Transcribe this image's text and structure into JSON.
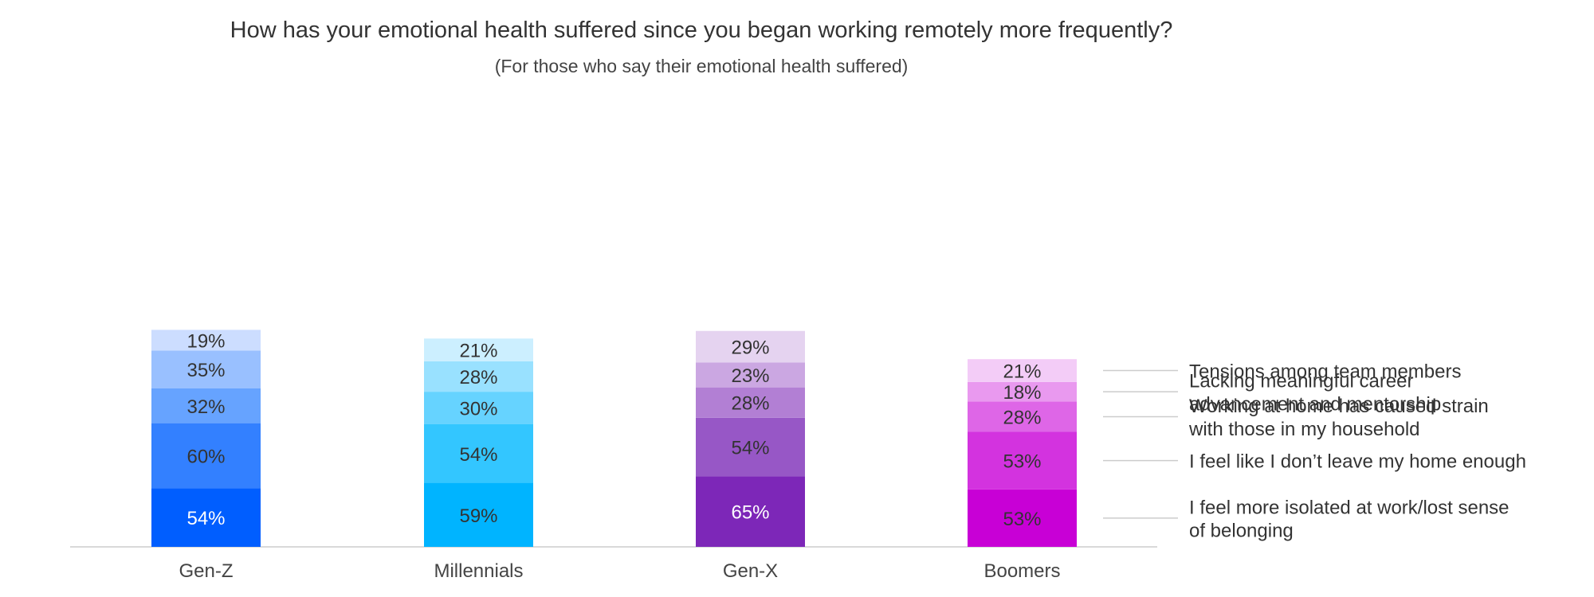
{
  "chart_data": {
    "type": "bar",
    "stacked": true,
    "title": "How has your emotional health suffered since you began working remotely more frequently?",
    "subtitle": "(For those who say their emotional health suffered)",
    "categories": [
      "Gen-Z",
      "Millennials",
      "Gen-X",
      "Boomers"
    ],
    "series": [
      {
        "name": "I feel more isolated at work/lost sense of belonging",
        "label_lines": [
          "I feel more isolated at work/lost sense",
          "of belonging"
        ],
        "values": [
          54,
          59,
          65,
          53
        ]
      },
      {
        "name": "I feel like I don’t leave my home enough",
        "label_lines": [
          "I feel like I don’t leave my home enough"
        ],
        "values": [
          60,
          54,
          54,
          53
        ]
      },
      {
        "name": "Working at home has caused strain with those in my household",
        "label_lines": [
          "Working at home has caused strain",
          "with those in my household"
        ],
        "values": [
          32,
          30,
          28,
          28
        ]
      },
      {
        "name": "Lacking meaningful career advancement and mentorship",
        "label_lines": [
          "Lacking meaningful career",
          "advancement and mentorship"
        ],
        "values": [
          35,
          28,
          23,
          18
        ]
      },
      {
        "name": "Tensions among team members",
        "label_lines": [
          "Tensions among team members"
        ],
        "values": [
          19,
          21,
          29,
          21
        ]
      }
    ],
    "value_suffix": "%",
    "colors": [
      [
        "#005EFF",
        "#3380FF",
        "#66A3FF",
        "#99C0FF",
        "#CCDDFF"
      ],
      [
        "#00B4FF",
        "#33C6FF",
        "#66D3FF",
        "#99E1FF",
        "#CCEFFF"
      ],
      [
        "#7D27B8",
        "#9757C6",
        "#B27FD4",
        "#CBA7E2",
        "#E5D3F0"
      ],
      [
        "#C800D6",
        "#D333DF",
        "#DE66E7",
        "#E999EF",
        "#F3CCF7"
      ]
    ],
    "label_text_colors": [
      [
        "#ffffff",
        "#333333",
        "#333333",
        "#333333",
        "#333333"
      ],
      [
        "#333333",
        "#333333",
        "#333333",
        "#333333",
        "#333333"
      ],
      [
        "#ffffff",
        "#333333",
        "#333333",
        "#333333",
        "#333333"
      ],
      [
        "#333333",
        "#333333",
        "#333333",
        "#333333",
        "#333333"
      ]
    ],
    "grid": false,
    "legend": "right, labels aligned to the Boomers bar segments"
  }
}
